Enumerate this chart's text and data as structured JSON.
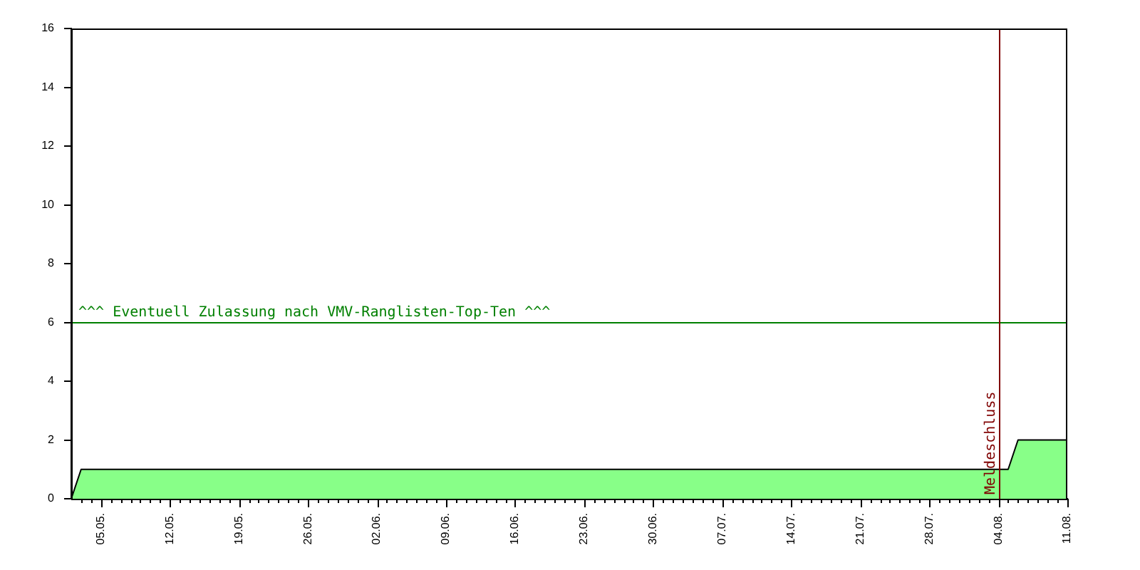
{
  "chart_data": {
    "type": "area",
    "x": [
      "--05-02",
      "--05-03",
      "--08-05",
      "--08-06",
      "--08-11"
    ],
    "values": [
      0,
      1,
      1,
      2,
      2
    ],
    "color": "#88ff88",
    "xlim": [
      "--05-02",
      "--08-11"
    ],
    "xticks": [
      {
        "value": "--05-03",
        "label": null
      },
      {
        "value": "--05-04",
        "label": null
      },
      {
        "value": "--05-05",
        "label": "05.05."
      },
      {
        "value": "--05-06",
        "label": null
      },
      {
        "value": "--05-07",
        "label": null
      },
      {
        "value": "--05-08",
        "label": null
      },
      {
        "value": "--05-09",
        "label": null
      },
      {
        "value": "--05-10",
        "label": null
      },
      {
        "value": "--05-11",
        "label": null
      },
      {
        "value": "--05-12",
        "label": "12.05."
      },
      {
        "value": "--05-13",
        "label": null
      },
      {
        "value": "--05-14",
        "label": null
      },
      {
        "value": "--05-15",
        "label": null
      },
      {
        "value": "--05-16",
        "label": null
      },
      {
        "value": "--05-17",
        "label": null
      },
      {
        "value": "--05-18",
        "label": null
      },
      {
        "value": "--05-19",
        "label": "19.05."
      },
      {
        "value": "--05-20",
        "label": null
      },
      {
        "value": "--05-21",
        "label": null
      },
      {
        "value": "--05-22",
        "label": null
      },
      {
        "value": "--05-23",
        "label": null
      },
      {
        "value": "--05-24",
        "label": null
      },
      {
        "value": "--05-25",
        "label": null
      },
      {
        "value": "--05-26",
        "label": "26.05."
      },
      {
        "value": "--05-27",
        "label": null
      },
      {
        "value": "--05-28",
        "label": null
      },
      {
        "value": "--05-29",
        "label": null
      },
      {
        "value": "--05-30",
        "label": null
      },
      {
        "value": "--05-31",
        "label": null
      },
      {
        "value": "--06-01",
        "label": null
      },
      {
        "value": "--06-02",
        "label": "02.06."
      },
      {
        "value": "--06-03",
        "label": null
      },
      {
        "value": "--06-04",
        "label": null
      },
      {
        "value": "--06-05",
        "label": null
      },
      {
        "value": "--06-06",
        "label": null
      },
      {
        "value": "--06-07",
        "label": null
      },
      {
        "value": "--06-08",
        "label": null
      },
      {
        "value": "--06-09",
        "label": "09.06."
      },
      {
        "value": "--06-10",
        "label": null
      },
      {
        "value": "--06-11",
        "label": null
      },
      {
        "value": "--06-12",
        "label": null
      },
      {
        "value": "--06-13",
        "label": null
      },
      {
        "value": "--06-14",
        "label": null
      },
      {
        "value": "--06-15",
        "label": null
      },
      {
        "value": "--06-16",
        "label": "16.06."
      },
      {
        "value": "--06-17",
        "label": null
      },
      {
        "value": "--06-18",
        "label": null
      },
      {
        "value": "--06-19",
        "label": null
      },
      {
        "value": "--06-20",
        "label": null
      },
      {
        "value": "--06-21",
        "label": null
      },
      {
        "value": "--06-22",
        "label": null
      },
      {
        "value": "--06-23",
        "label": "23.06."
      },
      {
        "value": "--06-24",
        "label": null
      },
      {
        "value": "--06-25",
        "label": null
      },
      {
        "value": "--06-26",
        "label": null
      },
      {
        "value": "--06-27",
        "label": null
      },
      {
        "value": "--06-28",
        "label": null
      },
      {
        "value": "--06-29",
        "label": null
      },
      {
        "value": "--06-30",
        "label": "30.06."
      },
      {
        "value": "--07-01",
        "label": null
      },
      {
        "value": "--07-02",
        "label": null
      },
      {
        "value": "--07-03",
        "label": null
      },
      {
        "value": "--07-04",
        "label": null
      },
      {
        "value": "--07-05",
        "label": null
      },
      {
        "value": "--07-06",
        "label": null
      },
      {
        "value": "--07-07",
        "label": "07.07."
      },
      {
        "value": "--07-08",
        "label": null
      },
      {
        "value": "--07-09",
        "label": null
      },
      {
        "value": "--07-10",
        "label": null
      },
      {
        "value": "--07-11",
        "label": null
      },
      {
        "value": "--07-12",
        "label": null
      },
      {
        "value": "--07-13",
        "label": null
      },
      {
        "value": "--07-14",
        "label": "14.07."
      },
      {
        "value": "--07-15",
        "label": null
      },
      {
        "value": "--07-16",
        "label": null
      },
      {
        "value": "--07-17",
        "label": null
      },
      {
        "value": "--07-18",
        "label": null
      },
      {
        "value": "--07-19",
        "label": null
      },
      {
        "value": "--07-20",
        "label": null
      },
      {
        "value": "--07-21",
        "label": "21.07."
      },
      {
        "value": "--07-22",
        "label": null
      },
      {
        "value": "--07-23",
        "label": null
      },
      {
        "value": "--07-24",
        "label": null
      },
      {
        "value": "--07-25",
        "label": null
      },
      {
        "value": "--07-26",
        "label": null
      },
      {
        "value": "--07-27",
        "label": null
      },
      {
        "value": "--07-28",
        "label": "28.07."
      },
      {
        "value": "--07-29",
        "label": null
      },
      {
        "value": "--07-30",
        "label": null
      },
      {
        "value": "--07-31",
        "label": null
      },
      {
        "value": "--08-01",
        "label": null
      },
      {
        "value": "--08-02",
        "label": null
      },
      {
        "value": "--08-03",
        "label": null
      },
      {
        "value": "--08-04",
        "label": "04.08."
      },
      {
        "value": "--08-05",
        "label": null
      },
      {
        "value": "--08-06",
        "label": null
      },
      {
        "value": "--08-07",
        "label": null
      },
      {
        "value": "--08-08",
        "label": null
      },
      {
        "value": "--08-09",
        "label": null
      },
      {
        "value": "--08-10",
        "label": null
      },
      {
        "value": "--08-11",
        "label": "11.08."
      }
    ],
    "ylim": [
      0,
      16
    ],
    "yticks": [
      0,
      2,
      4,
      6,
      8,
      10,
      12,
      14,
      16
    ],
    "grid": false,
    "legend": false,
    "ref_lines": [
      {
        "axis": "y",
        "value": 6,
        "label": "^^^ Eventuell Zulassung nach VMV-Ranglisten-Top-Ten ^^^",
        "color": "#008000"
      },
      {
        "axis": "x",
        "value": "--08-04",
        "label": "Meldeschluss",
        "color": "#800000"
      }
    ]
  }
}
